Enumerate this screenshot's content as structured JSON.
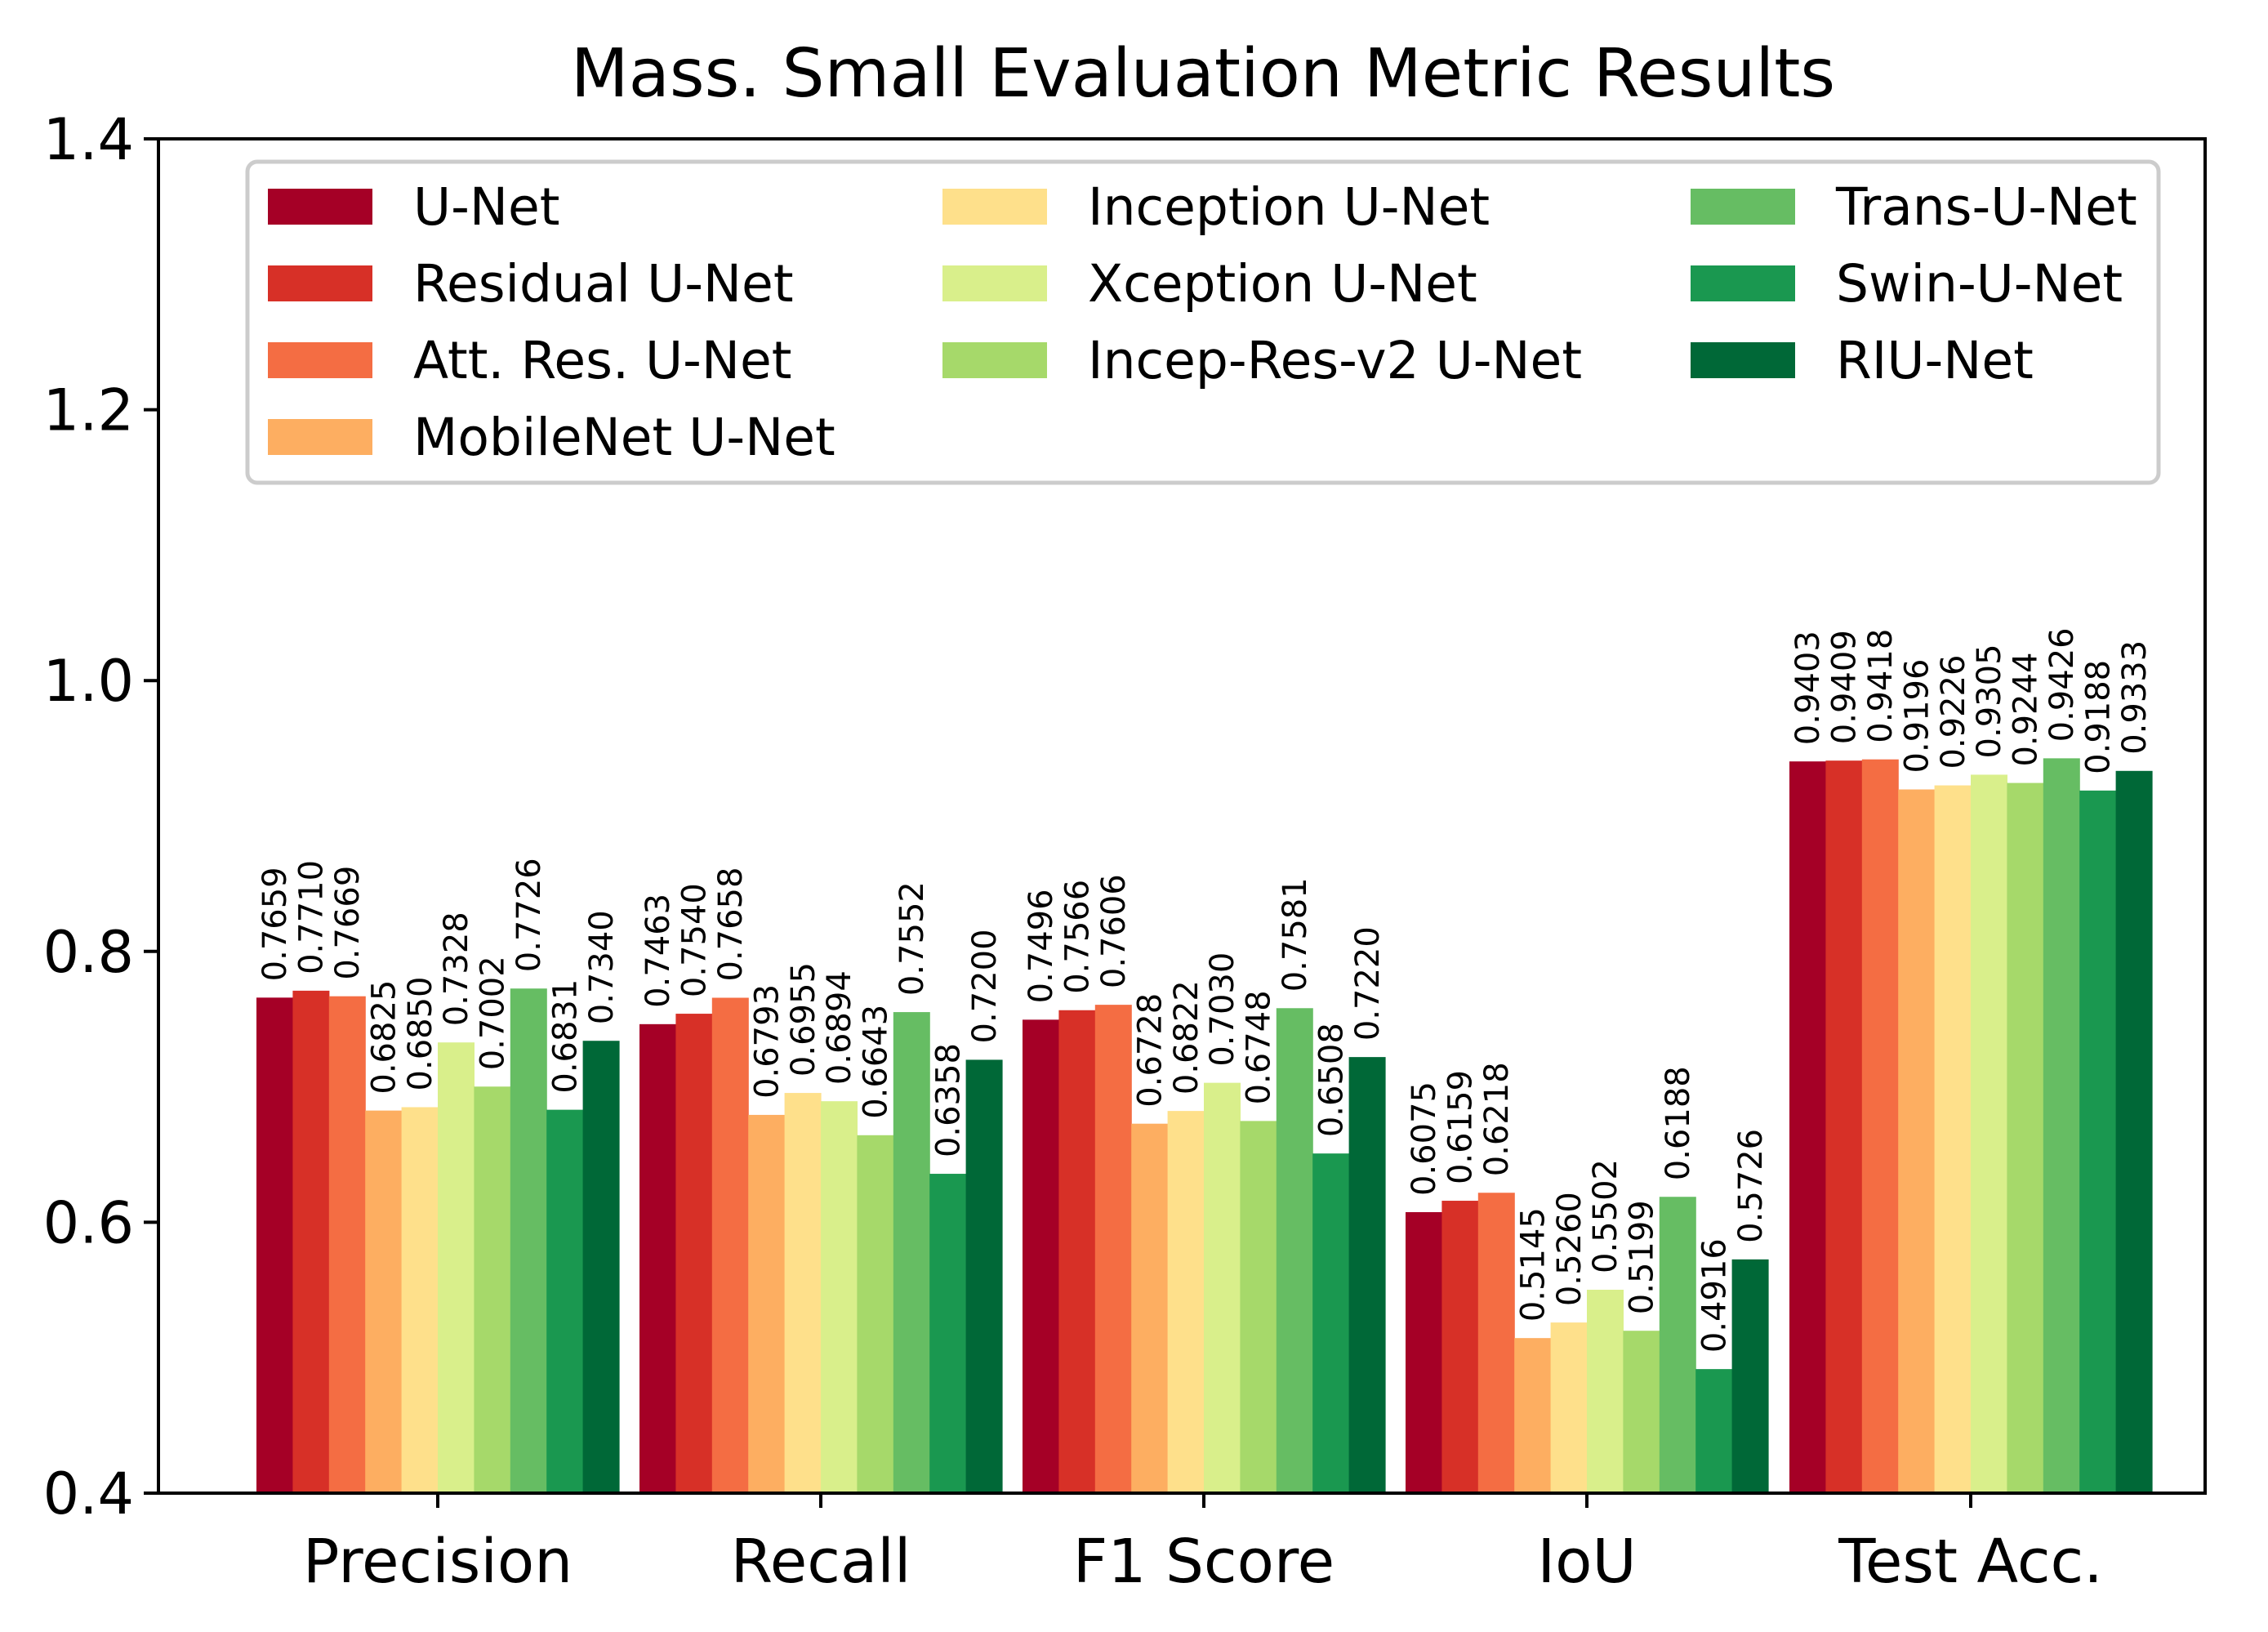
{
  "chart_data": {
    "type": "bar",
    "title": "Mass. Small Evaluation Metric Results",
    "xlabel": "",
    "ylabel": "",
    "ylim": [
      0.4,
      1.4
    ],
    "yticks": [
      "0.4",
      "0.6",
      "0.8",
      "1.0",
      "1.2",
      "1.4"
    ],
    "grid": false,
    "legend_position": "top",
    "categories": [
      "Precision",
      "Recall",
      "F1 Score",
      "IoU",
      "Test Acc."
    ],
    "series": [
      {
        "name": "U-Net",
        "color": "#a50026",
        "values": [
          0.7659,
          0.7463,
          0.7496,
          0.6075,
          0.9403
        ],
        "labels": [
          "0.7659",
          "0.7463",
          "0.7496",
          "0.6075",
          "0.9403"
        ]
      },
      {
        "name": "Residual U-Net",
        "color": "#d73027",
        "values": [
          0.771,
          0.754,
          0.7566,
          0.6159,
          0.9409
        ],
        "labels": [
          "0.7710",
          "0.7540",
          "0.7566",
          "0.6159",
          "0.9409"
        ]
      },
      {
        "name": "Att. Res. U-Net",
        "color": "#f46d43",
        "values": [
          0.7669,
          0.7658,
          0.7606,
          0.6218,
          0.9418
        ],
        "labels": [
          "0.7669",
          "0.7658",
          "0.7606",
          "0.6218",
          "0.9418"
        ]
      },
      {
        "name": "MobileNet U-Net",
        "color": "#fdae61",
        "values": [
          0.6825,
          0.6793,
          0.6728,
          0.5145,
          0.9196
        ],
        "labels": [
          "0.6825",
          "0.6793",
          "0.6728",
          "0.5145",
          "0.9196"
        ]
      },
      {
        "name": "Inception U-Net",
        "color": "#fee08b",
        "values": [
          0.685,
          0.6955,
          0.6822,
          0.526,
          0.9226
        ],
        "labels": [
          "0.6850",
          "0.6955",
          "0.6822",
          "0.5260",
          "0.9226"
        ]
      },
      {
        "name": "Xception U-Net",
        "color": "#d9ef8b",
        "values": [
          0.7328,
          0.6894,
          0.703,
          0.5502,
          0.9305
        ],
        "labels": [
          "0.7328",
          "0.6894",
          "0.7030",
          "0.5502",
          "0.9305"
        ]
      },
      {
        "name": "Incep-Res-v2 U-Net",
        "color": "#a6d96a",
        "values": [
          0.7002,
          0.6643,
          0.6748,
          0.5199,
          0.9244
        ],
        "labels": [
          "0.7002",
          "0.6643",
          "0.6748",
          "0.5199",
          "0.9244"
        ]
      },
      {
        "name": "Trans-U-Net",
        "color": "#66bd63",
        "values": [
          0.7726,
          0.7552,
          0.7581,
          0.6188,
          0.9426
        ],
        "labels": [
          "0.7726",
          "0.7552",
          "0.7581",
          "0.6188",
          "0.9426"
        ]
      },
      {
        "name": "Swin-U-Net",
        "color": "#1a9850",
        "values": [
          0.6831,
          0.6358,
          0.6508,
          0.4916,
          0.9188
        ],
        "labels": [
          "0.6831",
          "0.6358",
          "0.6508",
          "0.4916",
          "0.9188"
        ]
      },
      {
        "name": "RIU-Net",
        "color": "#006837",
        "values": [
          0.734,
          0.72,
          0.722,
          0.5726,
          0.9333
        ],
        "labels": [
          "0.7340",
          "0.7200",
          "0.7220",
          "0.5726",
          "0.9333"
        ]
      }
    ]
  }
}
